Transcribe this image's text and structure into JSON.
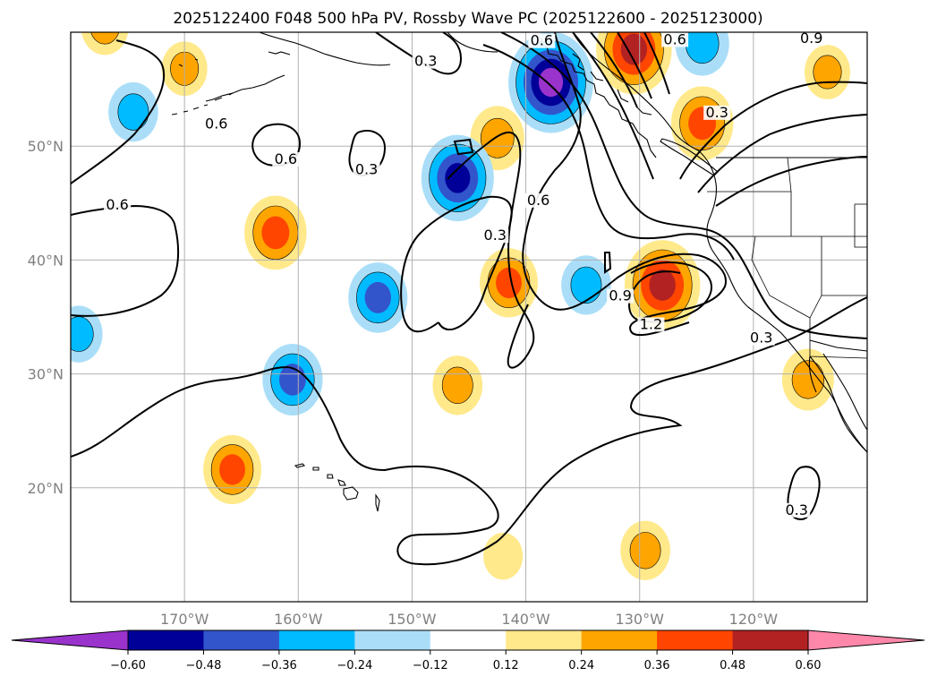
{
  "title": "2025122400 F048 500 hPa PV, Rossby Wave PC (2025122600 - 2025123000)",
  "map": {
    "lon_range": [
      -180,
      -110
    ],
    "lat_range": [
      10,
      60
    ],
    "lat_ticks": [
      {
        "lat": 50,
        "label": "50°N"
      },
      {
        "lat": 40,
        "label": "40°N"
      },
      {
        "lat": 30,
        "label": "30°N"
      },
      {
        "lat": 20,
        "label": "20°N"
      }
    ],
    "lon_ticks": [
      {
        "lon": -170,
        "label": "170°W"
      },
      {
        "lon": -160,
        "label": "160°W"
      },
      {
        "lon": -150,
        "label": "150°W"
      },
      {
        "lon": -140,
        "label": "140°W"
      },
      {
        "lon": -130,
        "label": "130°W"
      },
      {
        "lon": -120,
        "label": "120°W"
      }
    ],
    "contour_labels": [
      {
        "text": "0.3",
        "lon": -148.8,
        "lat": 57.2
      },
      {
        "text": "0.6",
        "lon": -138.6,
        "lat": 59.0
      },
      {
        "text": "0.6",
        "lon": -126.9,
        "lat": 59.1
      },
      {
        "text": "0.9",
        "lon": -114.9,
        "lat": 59.2
      },
      {
        "text": "0.6",
        "lon": -167.2,
        "lat": 51.7
      },
      {
        "text": "0.3",
        "lon": -123.2,
        "lat": 52.7
      },
      {
        "text": "0.6",
        "lon": -161.1,
        "lat": 48.6
      },
      {
        "text": "0.3",
        "lon": -154.0,
        "lat": 47.7
      },
      {
        "text": "0.6",
        "lon": -175.9,
        "lat": 44.6
      },
      {
        "text": "0.6",
        "lon": -138.9,
        "lat": 45.0
      },
      {
        "text": "0.3",
        "lon": -142.7,
        "lat": 41.9
      },
      {
        "text": "0.9",
        "lon": -131.7,
        "lat": 36.6
      },
      {
        "text": "1.2",
        "lon": -129.0,
        "lat": 34.1
      },
      {
        "text": "0.3",
        "lon": -119.3,
        "lat": 32.9
      },
      {
        "text": "0.3",
        "lon": -116.2,
        "lat": 17.8
      }
    ],
    "positive_anomalies": [
      {
        "lon": -128.0,
        "lat": 37.8,
        "peak": 0.55
      },
      {
        "lon": -130.5,
        "lat": 58.5,
        "peak": 0.55
      },
      {
        "lon": -124.5,
        "lat": 52.0,
        "peak": 0.42
      },
      {
        "lon": -162.0,
        "lat": 42.4,
        "peak": 0.42
      },
      {
        "lon": -142.5,
        "lat": 50.7,
        "peak": 0.34
      },
      {
        "lon": -141.5,
        "lat": 38.0,
        "peak": 0.38
      },
      {
        "lon": -146.0,
        "lat": 29.0,
        "peak": 0.3
      },
      {
        "lon": -165.8,
        "lat": 21.6,
        "peak": 0.38
      },
      {
        "lon": -115.2,
        "lat": 29.5,
        "peak": 0.32
      },
      {
        "lon": -129.5,
        "lat": 14.5,
        "peak": 0.3
      },
      {
        "lon": -170.0,
        "lat": 56.8,
        "peak": 0.26
      },
      {
        "lon": -113.5,
        "lat": 56.5,
        "peak": 0.26
      },
      {
        "lon": -142.0,
        "lat": 14.0,
        "peak": 0.2
      },
      {
        "lon": -177.0,
        "lat": 60.5,
        "peak": 0.28
      }
    ],
    "negative_anomalies": [
      {
        "lon": -137.8,
        "lat": 55.6,
        "peak": -0.64
      },
      {
        "lon": -146.0,
        "lat": 47.2,
        "peak": -0.52
      },
      {
        "lon": -153.0,
        "lat": 36.7,
        "peak": -0.39
      },
      {
        "lon": -160.5,
        "lat": 29.5,
        "peak": -0.4
      },
      {
        "lon": -174.5,
        "lat": 53.0,
        "peak": -0.3
      },
      {
        "lon": -124.5,
        "lat": 59.0,
        "peak": -0.34
      },
      {
        "lon": -134.7,
        "lat": 37.8,
        "peak": -0.3
      },
      {
        "lon": -179.3,
        "lat": 33.5,
        "peak": -0.28
      }
    ],
    "colors": {
      "land_border": "#000000",
      "grid": "#b0b0b0",
      "contour": "#000000"
    }
  },
  "colorbar": {
    "levels": [
      -0.6,
      -0.48,
      -0.36,
      -0.24,
      -0.12,
      0.12,
      0.24,
      0.36,
      0.48,
      0.6
    ],
    "labels": [
      "−0.60",
      "−0.48",
      "−0.36",
      "−0.24",
      "−0.12",
      "0.12",
      "0.24",
      "0.36",
      "0.48",
      "0.60"
    ],
    "colors": [
      "#9933cc",
      "#000099",
      "#3355cc",
      "#00bbff",
      "#aadef8",
      "#ffffff",
      "#ffe98a",
      "#ffa500",
      "#ff4500",
      "#b22222",
      "#ff88aa"
    ]
  }
}
